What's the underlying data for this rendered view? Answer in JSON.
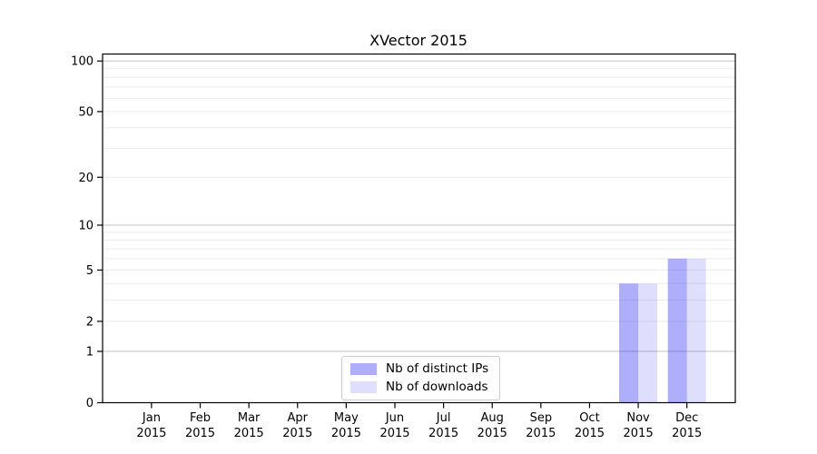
{
  "chart_data": {
    "type": "bar",
    "title": "XVector 2015",
    "categories": [
      "Jan",
      "Feb",
      "Mar",
      "Apr",
      "May",
      "Jun",
      "Jul",
      "Aug",
      "Sep",
      "Oct",
      "Nov",
      "Dec"
    ],
    "category_year": "2015",
    "series": [
      {
        "name": "Nb of distinct IPs",
        "color": "rgba(10,10,240,0.33)",
        "values": [
          0,
          0,
          0,
          0,
          0,
          0,
          0,
          0,
          0,
          0,
          4,
          6
        ]
      },
      {
        "name": "Nb of downloads",
        "color": "rgba(10,10,240,0.13)",
        "values": [
          0,
          0,
          0,
          0,
          0,
          0,
          0,
          0,
          0,
          0,
          4,
          6
        ]
      }
    ],
    "yscale": "log1p",
    "ylim": [
      0,
      110
    ],
    "yticks": [
      0,
      1,
      2,
      5,
      10,
      20,
      50,
      100
    ],
    "grid": {
      "major_lines": [
        1,
        10,
        100
      ],
      "minor_lines": [
        2,
        3,
        4,
        5,
        6,
        7,
        8,
        9,
        20,
        30,
        40,
        50,
        60,
        70,
        80,
        90
      ],
      "major_color": "#c9c9c9",
      "minor_color": "#ececec"
    },
    "legend_position": "lower center",
    "frame_color": "#000000",
    "background_color": "#ffffff"
  }
}
